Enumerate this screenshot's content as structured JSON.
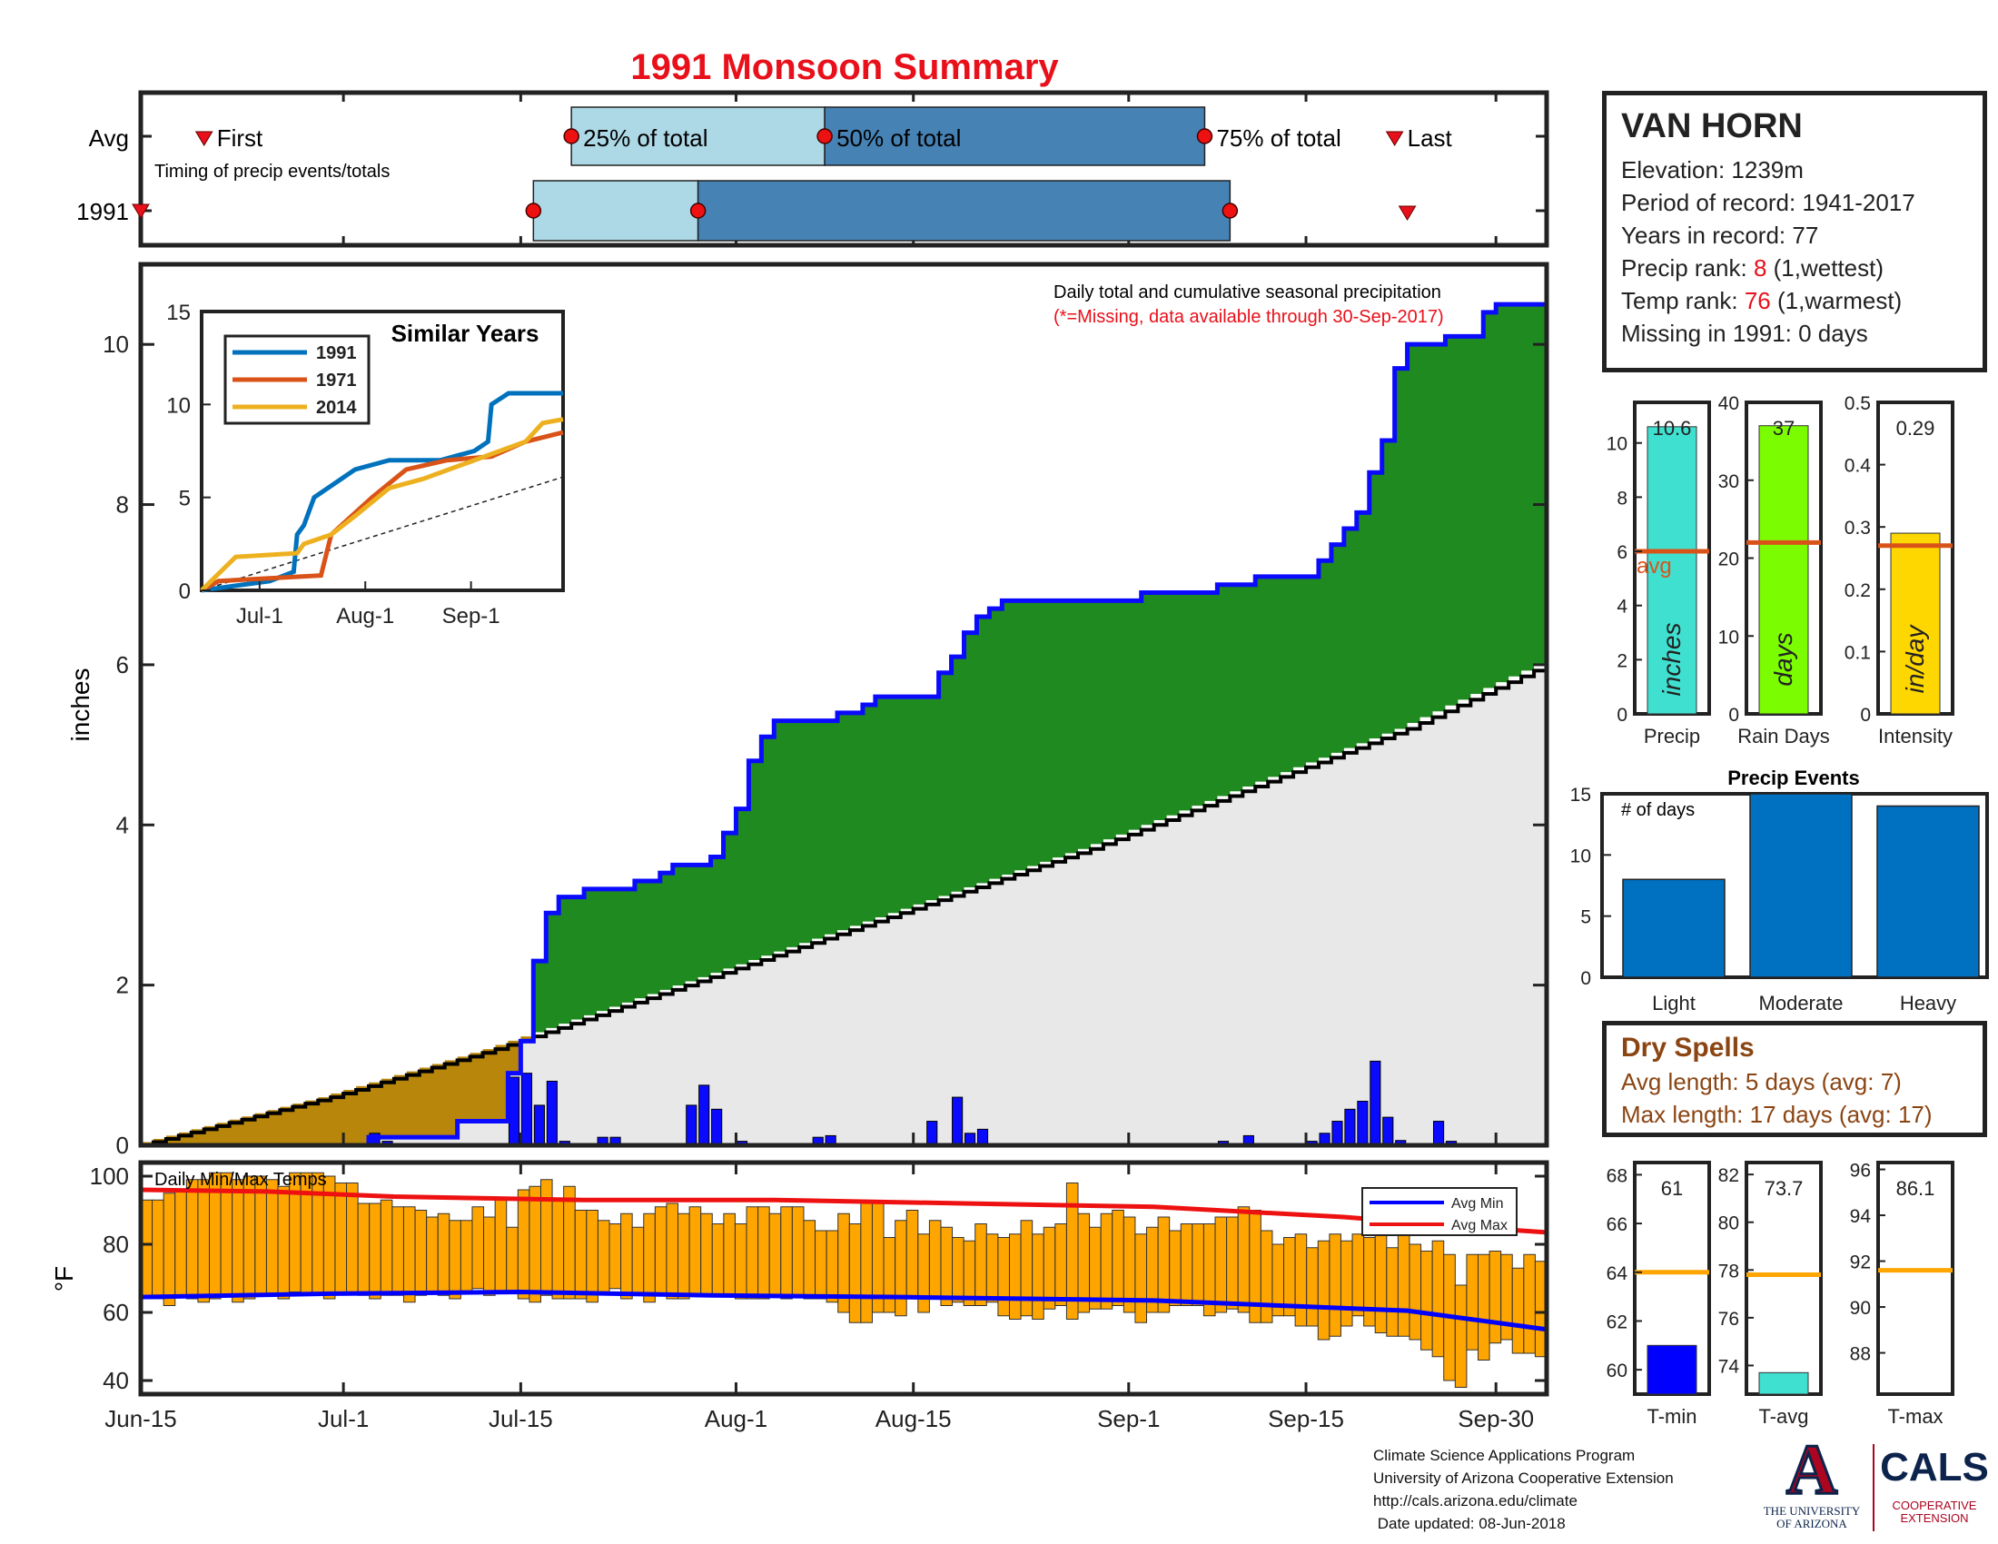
{
  "title": "1991 Monsoon Summary",
  "colors": {
    "green": "#1f8a1f",
    "blue_line": "#0a0aff",
    "brown": "#b8860b",
    "gray_fill": "#e8e8e8",
    "light_blue": "#add8e6",
    "steel_blue": "#4682b4",
    "orange_temp": "#ffa500",
    "red_line": "#ee1111",
    "bar_blue": "#0070c0",
    "title_red": "#e8101a"
  },
  "timing": {
    "avg_label": "Avg",
    "year_label": "1991",
    "caption": "Timing of precip events/totals",
    "first_label": "First",
    "last_label": "Last",
    "p25_label": "25% of total",
    "p50_label": "50% of total",
    "p75_label": "75% of total",
    "avg_first": "Jun-20",
    "avg_p25": "Jul-18",
    "avg_p50": "Aug-7",
    "avg_p75": "Sep-6",
    "avg_last": "Sep-21",
    "yr_first": "Jun-15",
    "yr_p25": "Jul-15",
    "yr_p50": "Jul-28",
    "yr_p75": "Sep-8",
    "yr_last": "Sep-22"
  },
  "station": {
    "name": "VAN HORN",
    "elevation": "Elevation: 1239m",
    "period": "Period of record: 1941-2017",
    "years": "Years in record: 77",
    "precip_rank_prefix": "Precip rank: ",
    "precip_rank": "8",
    "precip_rank_suffix": " (1,wettest)",
    "temp_rank_prefix": "Temp rank: ",
    "temp_rank": "76",
    "temp_rank_suffix": " (1,warmest)",
    "missing": "Missing in 1991: 0 days"
  },
  "main_chart": {
    "annotation": "Daily total and cumulative seasonal precipitation",
    "missing_note": "(*=Missing, data available through 30-Sep-2017)",
    "ylabel": "inches",
    "yticks": [
      "0",
      "2",
      "4",
      "6",
      "8",
      "10"
    ],
    "xticks": [
      "Jun-15",
      "Jul-1",
      "Jul-15",
      "Aug-1",
      "Aug-15",
      "Sep-1",
      "Sep-15",
      "Sep-30"
    ]
  },
  "chart_data": [
    {
      "type": "area",
      "title": "",
      "ylabel": "inches",
      "ylim": [
        0,
        11
      ],
      "x_start": "Jun-15",
      "x_end": "Sep-30",
      "cumulative_1991": [
        [
          0,
          0
        ],
        [
          18,
          0.1
        ],
        [
          25,
          0.3
        ],
        [
          26,
          0.3
        ],
        [
          28,
          0.3
        ],
        [
          29,
          0.9
        ],
        [
          30,
          1.3
        ],
        [
          31,
          2.3
        ],
        [
          32,
          2.9
        ],
        [
          33,
          3.1
        ],
        [
          35,
          3.2
        ],
        [
          38,
          3.2
        ],
        [
          39,
          3.3
        ],
        [
          41,
          3.4
        ],
        [
          42,
          3.5
        ],
        [
          44,
          3.5
        ],
        [
          45,
          3.6
        ],
        [
          46,
          3.9
        ],
        [
          47,
          4.2
        ],
        [
          48,
          4.8
        ],
        [
          49,
          5.1
        ],
        [
          50,
          5.3
        ],
        [
          51,
          5.3
        ],
        [
          54,
          5.3
        ],
        [
          55,
          5.4
        ],
        [
          57,
          5.5
        ],
        [
          58,
          5.6
        ],
        [
          62,
          5.6
        ],
        [
          63,
          5.9
        ],
        [
          64,
          6.1
        ],
        [
          65,
          6.4
        ],
        [
          66,
          6.6
        ],
        [
          67,
          6.7
        ],
        [
          68,
          6.8
        ],
        [
          75,
          6.8
        ],
        [
          79,
          6.9
        ],
        [
          84,
          6.9
        ],
        [
          85,
          7.0
        ],
        [
          86,
          7.0
        ],
        [
          88,
          7.1
        ],
        [
          92,
          7.1
        ],
        [
          93,
          7.3
        ],
        [
          94,
          7.5
        ],
        [
          95,
          7.7
        ],
        [
          96,
          7.9
        ],
        [
          97,
          8.4
        ],
        [
          98,
          8.8
        ],
        [
          99,
          9.7
        ],
        [
          100,
          10.0
        ],
        [
          103,
          10.1
        ],
        [
          106,
          10.4
        ],
        [
          107,
          10.5
        ],
        [
          111,
          10.6
        ]
      ],
      "avg_cumulative": [
        [
          0,
          0
        ],
        [
          15,
          0.6
        ],
        [
          28,
          1.2
        ],
        [
          45,
          2.1
        ],
        [
          60,
          2.9
        ],
        [
          75,
          3.7
        ],
        [
          90,
          4.6
        ],
        [
          100,
          5.2
        ],
        [
          111,
          6.0
        ]
      ],
      "daily": [
        [
          18,
          0.15
        ],
        [
          19,
          0.05
        ],
        [
          29,
          0.85
        ],
        [
          30,
          0.9
        ],
        [
          31,
          0.5
        ],
        [
          32,
          0.8
        ],
        [
          33,
          0.05
        ],
        [
          36,
          0.1
        ],
        [
          37,
          0.1
        ],
        [
          43,
          0.5
        ],
        [
          44,
          0.75
        ],
        [
          45,
          0.45
        ],
        [
          47,
          0.05
        ],
        [
          53,
          0.1
        ],
        [
          54,
          0.12
        ],
        [
          62,
          0.3
        ],
        [
          64,
          0.6
        ],
        [
          65,
          0.15
        ],
        [
          66,
          0.2
        ],
        [
          85,
          0.05
        ],
        [
          87,
          0.12
        ],
        [
          92,
          0.05
        ],
        [
          93,
          0.15
        ],
        [
          94,
          0.3
        ],
        [
          95,
          0.45
        ],
        [
          96,
          0.55
        ],
        [
          97,
          1.05
        ],
        [
          98,
          0.35
        ],
        [
          99,
          0.06
        ],
        [
          102,
          0.3
        ],
        [
          103,
          0.05
        ]
      ]
    },
    {
      "type": "line",
      "title": "Similar Years",
      "ylim": [
        0,
        15
      ],
      "yticks": [
        "0",
        "5",
        "10",
        "15"
      ],
      "xticks": [
        "Jul-1",
        "Aug-1",
        "Sep-1"
      ],
      "series": [
        {
          "name": "1991",
          "color": "#0072bd",
          "values": [
            [
              0,
              0
            ],
            [
              20,
              0.5
            ],
            [
              27,
              1
            ],
            [
              28,
              3
            ],
            [
              30,
              3.5
            ],
            [
              33,
              5
            ],
            [
              37,
              5.5
            ],
            [
              45,
              6.5
            ],
            [
              55,
              7
            ],
            [
              70,
              7
            ],
            [
              80,
              7.5
            ],
            [
              84,
              8
            ],
            [
              85,
              10
            ],
            [
              90,
              10.6
            ],
            [
              106,
              10.6
            ]
          ]
        },
        {
          "name": "1971",
          "color": "#d95319",
          "values": [
            [
              0,
              0
            ],
            [
              5,
              0.5
            ],
            [
              35,
              0.8
            ],
            [
              38,
              3
            ],
            [
              50,
              5
            ],
            [
              60,
              6.5
            ],
            [
              72,
              7
            ],
            [
              85,
              7.2
            ],
            [
              95,
              8
            ],
            [
              106,
              8.5
            ]
          ]
        },
        {
          "name": "2014",
          "color": "#edb120",
          "values": [
            [
              0,
              0
            ],
            [
              10,
              1.8
            ],
            [
              28,
              2
            ],
            [
              30,
              2.5
            ],
            [
              38,
              3
            ],
            [
              45,
              4
            ],
            [
              55,
              5.5
            ],
            [
              65,
              6
            ],
            [
              80,
              7
            ],
            [
              95,
              8
            ],
            [
              100,
              9
            ],
            [
              106,
              9.2
            ]
          ]
        }
      ]
    },
    {
      "type": "bar",
      "title": "",
      "panels": [
        {
          "label": "Precip",
          "unit": "inches",
          "value": 10.6,
          "value_label": "10.6",
          "avg": 6.0,
          "avg_label": "avg",
          "ylim": [
            0,
            11.5
          ],
          "yticks": [
            "0",
            "2",
            "4",
            "6",
            "8",
            "10"
          ],
          "color": "#40e0d0"
        },
        {
          "label": "Rain Days",
          "unit": "days",
          "value": 37,
          "value_label": "37",
          "avg": 22,
          "ylim": [
            0,
            40
          ],
          "yticks": [
            "0",
            "10",
            "20",
            "30",
            "40"
          ],
          "color": "#7cfc00"
        },
        {
          "label": "Intensity",
          "unit": "in/day",
          "value": 0.29,
          "value_label": "0.29",
          "avg": 0.27,
          "ylim": [
            0,
            0.5
          ],
          "yticks": [
            "0",
            "0.1",
            "0.2",
            "0.3",
            "0.4",
            "0.5"
          ],
          "color": "#ffd700"
        }
      ]
    },
    {
      "type": "bar",
      "title": "Precip Events",
      "ylabel_note": "# of days",
      "categories": [
        "Light",
        "Moderate",
        "Heavy"
      ],
      "values": [
        8,
        15,
        14
      ],
      "ylim": [
        0,
        15
      ],
      "yticks": [
        "0",
        "5",
        "10",
        "15"
      ]
    },
    {
      "type": "bar",
      "title": "Daily Min/Max Temps",
      "ylabel": "°F",
      "ylim": [
        36,
        104
      ],
      "yticks": [
        "40",
        "60",
        "80",
        "100"
      ],
      "legend": [
        "Avg Min",
        "Avg Max"
      ],
      "tmin": [
        64,
        64,
        62,
        65,
        64,
        63,
        64,
        65,
        63,
        64,
        65,
        65,
        64,
        66,
        65,
        65,
        64,
        66,
        66,
        65,
        64,
        65,
        65,
        63,
        65,
        66,
        65,
        64,
        66,
        67,
        65,
        66,
        66,
        64,
        63,
        65,
        64,
        64,
        64,
        63,
        66,
        67,
        64,
        65,
        63,
        65,
        64,
        64,
        65,
        65,
        65,
        65,
        64,
        64,
        64,
        65,
        64,
        65,
        64,
        64,
        63,
        60,
        57,
        57,
        60,
        60,
        59,
        64,
        60,
        64,
        62,
        63,
        62,
        62,
        63,
        59,
        58,
        59,
        58,
        61,
        62,
        58,
        60,
        61,
        61,
        62,
        60,
        57,
        60,
        60,
        62,
        62,
        62,
        59,
        60,
        61,
        60,
        57,
        57,
        59,
        59,
        56,
        56,
        52,
        53,
        56,
        59,
        56,
        54,
        53,
        53,
        52,
        49,
        47,
        40,
        38,
        49,
        46,
        51,
        52,
        48,
        48,
        47
      ],
      "tmax": [
        93,
        93,
        95,
        96,
        99,
        99,
        101,
        101,
        99,
        100,
        100,
        99,
        97,
        101,
        101,
        101,
        100,
        98,
        98,
        92,
        92,
        93,
        91,
        91,
        90,
        88,
        89,
        87,
        87,
        91,
        88,
        93,
        85,
        96,
        97,
        99,
        93,
        97,
        90,
        90,
        87,
        86,
        89,
        85,
        89,
        91,
        92,
        89,
        91,
        89,
        86,
        89,
        86,
        91,
        91,
        89,
        91,
        91,
        87,
        84,
        84,
        89,
        86,
        92,
        92,
        82,
        87,
        90,
        83,
        87,
        85,
        82,
        81,
        86,
        83,
        82,
        83,
        87,
        83,
        85,
        86,
        98,
        89,
        85,
        89,
        90,
        88,
        83,
        85,
        88,
        84,
        86,
        86,
        86,
        88,
        88,
        91,
        90,
        84,
        80,
        82,
        83,
        79,
        81,
        83,
        81,
        83,
        82,
        83,
        79,
        83,
        80,
        78,
        81,
        77,
        68,
        77,
        77,
        78,
        77,
        73,
        77,
        75
      ],
      "avg_min": [
        [
          0,
          64.5
        ],
        [
          15,
          65.5
        ],
        [
          30,
          66
        ],
        [
          45,
          65
        ],
        [
          60,
          64.5
        ],
        [
          80,
          63.5
        ],
        [
          100,
          60.5
        ],
        [
          111,
          55
        ]
      ],
      "avg_max": [
        [
          0,
          96
        ],
        [
          10,
          95.5
        ],
        [
          20,
          94
        ],
        [
          35,
          93
        ],
        [
          50,
          93
        ],
        [
          65,
          92
        ],
        [
          80,
          91
        ],
        [
          95,
          88
        ],
        [
          105,
          85
        ],
        [
          111,
          83.5
        ]
      ]
    },
    {
      "type": "bar",
      "title": "",
      "panels": [
        {
          "label": "T-min",
          "value": 61,
          "value_label": "61",
          "avg": 64,
          "ylim": [
            59,
            68.5
          ],
          "yticks": [
            "60",
            "62",
            "64",
            "66",
            "68"
          ],
          "color": "#0000ff"
        },
        {
          "label": "T-avg",
          "value": 73.7,
          "value_label": "73.7",
          "avg": 77.8,
          "ylim": [
            72.8,
            82.5
          ],
          "yticks": [
            "74",
            "76",
            "78",
            "80",
            "82"
          ],
          "color": "#40e0d0"
        },
        {
          "label": "T-max",
          "value": 86.1,
          "value_label": "86.1",
          "avg": 91.6,
          "ylim": [
            86.2,
            96.3
          ],
          "yticks": [
            "88",
            "90",
            "92",
            "94",
            "96"
          ],
          "color": "#ffa500"
        }
      ]
    }
  ],
  "dry_spells": {
    "title": "Dry Spells",
    "avg_length": "Avg length: 5 days (avg: 7)",
    "max_length": "Max length: 17 days (avg: 17)"
  },
  "credits": {
    "line1": "Climate Science Applications Program",
    "line2": "University of Arizona Cooperative Extension",
    "line3": "http://cals.arizona.edu/climate",
    "line4": " Date updated: 08-Jun-2018"
  },
  "logo": {
    "ua_letter": "A",
    "ua_line1": "THE UNIVERSITY",
    "ua_line2": "OF ARIZONA",
    "cals": "CALS",
    "cals_line1": "COOPERATIVE",
    "cals_line2": "EXTENSION"
  }
}
